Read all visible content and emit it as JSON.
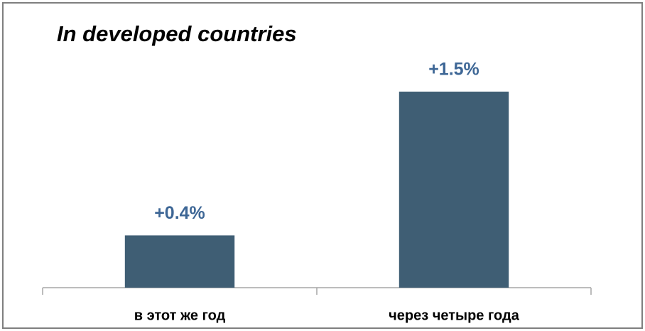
{
  "chart_data": {
    "type": "bar",
    "title": "In developed countries",
    "categories": [
      "в этот же год",
      "через четыре года"
    ],
    "values": [
      0.4,
      1.5
    ],
    "value_labels": [
      "+0.4%",
      "+1.5%"
    ],
    "color": "#3f5e74",
    "ylim": [
      0,
      2
    ]
  }
}
